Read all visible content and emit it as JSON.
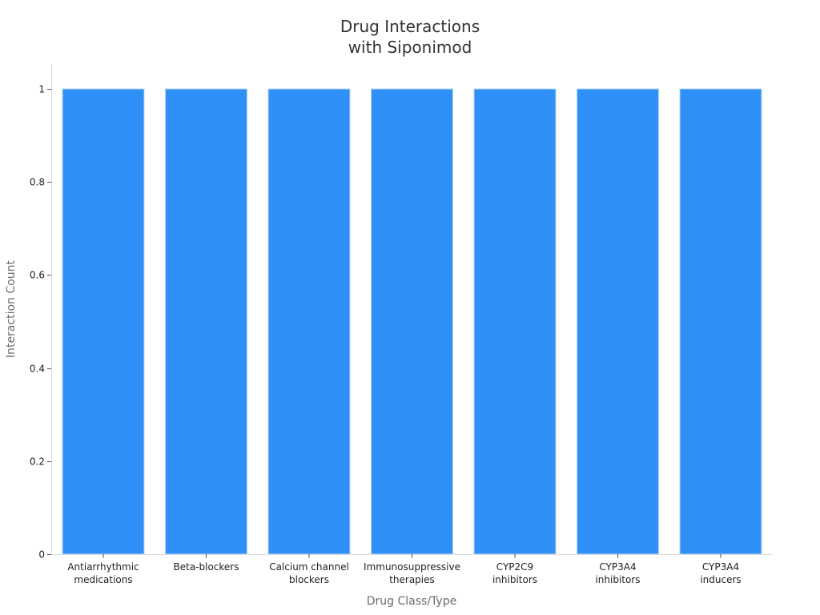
{
  "chart_data": {
    "type": "bar",
    "title_lines": [
      "Drug Interactions",
      "with Siponimod"
    ],
    "xlabel": "Drug Class/Type",
    "ylabel": "Interaction Count",
    "categories": [
      [
        "Antiarrhythmic",
        "medications"
      ],
      [
        "Beta-blockers"
      ],
      [
        "Calcium channel",
        "blockers"
      ],
      [
        "Immunosuppressive",
        "therapies"
      ],
      [
        "CYP2C9",
        "inhibitors"
      ],
      [
        "CYP3A4",
        "inhibitors"
      ],
      [
        "CYP3A4",
        "inducers"
      ]
    ],
    "values": [
      1,
      1,
      1,
      1,
      1,
      1,
      1
    ],
    "ylim": [
      0,
      1.05
    ],
    "yticks": [
      0,
      0.2,
      0.4,
      0.6,
      0.8,
      1
    ],
    "ytick_labels": [
      "0",
      "0.2",
      "0.4",
      "0.6",
      "0.8",
      "1"
    ],
    "bar_color": "#2f91f7",
    "grid": false,
    "legend": null
  }
}
